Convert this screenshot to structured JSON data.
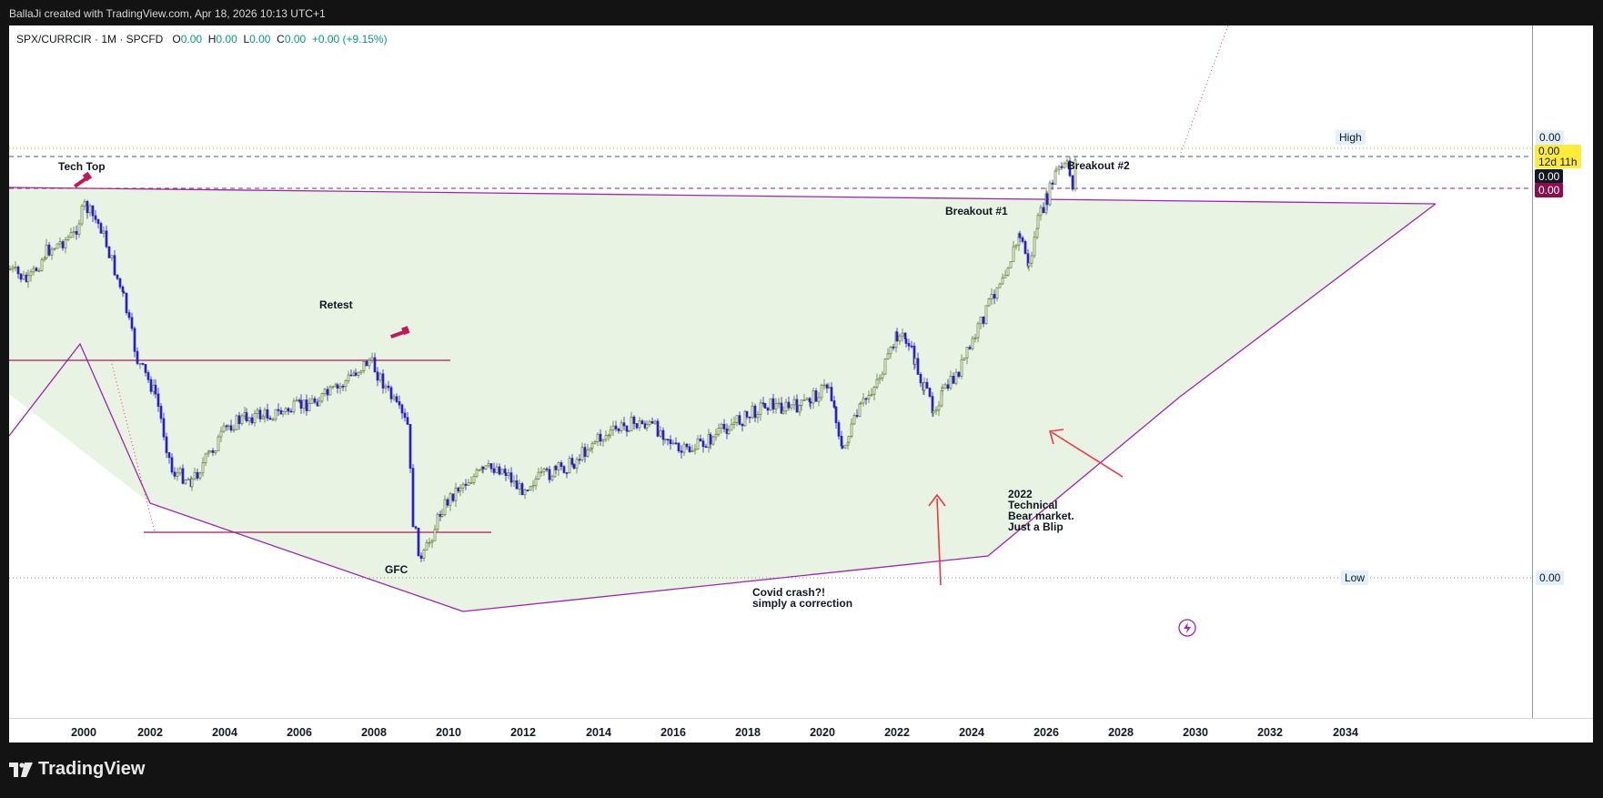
{
  "header": {
    "attribution": "BallaJi created with TradingView.com, Apr 18, 2026 10:13 UTC+1"
  },
  "legend": {
    "symbol": "SPX/CURRCIR · 1M · SPCFD",
    "o_label": "O",
    "o_value": "0.00",
    "h_label": "H",
    "h_value": "0.00",
    "l_label": "L",
    "l_value": "0.00",
    "c_label": "C",
    "c_value": "0.00",
    "change": "+0.00 (+9.15%)"
  },
  "annotations": {
    "tech_top": "Tech Top",
    "retest": "Retest",
    "gfc": "GFC",
    "covid_line1": "Covid crash?!",
    "covid_line2": "simply a correction",
    "bear_line1": "2022",
    "bear_line2": "Technical",
    "bear_line3": "Bear market.",
    "bear_line4": "Just a Blip",
    "breakout1": "Breakout #1",
    "breakout2": "Breakout #2"
  },
  "price_scale": {
    "high_label": "High",
    "high_value": "0.00",
    "current_value": "0.00",
    "countdown": "12d 11h",
    "line_value": "0.00",
    "sell_value": "0.00",
    "low_label": "Low",
    "low_value": "0.00"
  },
  "x_axis": {
    "ticks": [
      "2000",
      "2002",
      "2004",
      "2006",
      "2008",
      "2010",
      "2012",
      "2014",
      "2016",
      "2018",
      "2020",
      "2022",
      "2024",
      "2026",
      "2028",
      "2030",
      "2032",
      "2034"
    ]
  },
  "colors": {
    "up": "#5a7a2a",
    "down": "#2a1ec8",
    "triangle": "#9c27b0",
    "arrow": "#f23645",
    "retest_line": "#9e1f63",
    "fill": "#e8f3e4",
    "badge_current": "#ffeb3b",
    "badge_sell": "#880e4f"
  },
  "branding": {
    "name": "TradingView"
  }
}
